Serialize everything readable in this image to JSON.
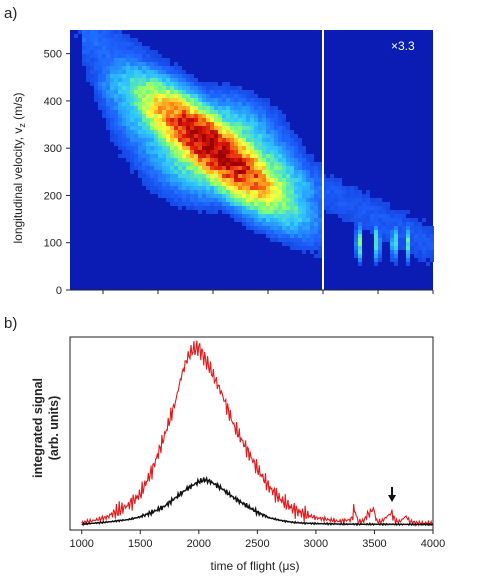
{
  "chart_data": [
    {
      "panel": "a)",
      "type": "heatmap",
      "title": "",
      "xlabel": "",
      "ylabel_main": "longitudinal velocity, v",
      "ylabel_sub": "z",
      "ylabel_unit": " (m/s)",
      "xlim": [
        700,
        4000
      ],
      "ylim": [
        0,
        550
      ],
      "y_ticks": [
        0,
        100,
        200,
        300,
        400,
        500
      ],
      "x_ticks": [
        1000,
        1500,
        2000,
        2500,
        3000,
        3500,
        4000
      ],
      "split_line_x": 3000,
      "scale_annotation": "×3.3",
      "colormap": [
        "#0a1fbf",
        "#1e64ff",
        "#2fc8ff",
        "#7dff7a",
        "#ffff3a",
        "#ff8a1a",
        "#e01a0a",
        "#9a0000"
      ],
      "background_color": "#0a1cb4",
      "blobs": [
        {
          "x": 2000,
          "y": 300,
          "sx": 380,
          "sy": 70,
          "amp": 1.0
        },
        {
          "x": 1350,
          "y": 390,
          "sx": 220,
          "sy": 55,
          "amp": 0.45
        },
        {
          "x": 2550,
          "y": 235,
          "sx": 200,
          "sy": 40,
          "amp": 0.55
        },
        {
          "x": 1100,
          "y": 450,
          "sx": 150,
          "sy": 35,
          "amp": 0.3
        },
        {
          "x": 2850,
          "y": 200,
          "sx": 130,
          "sy": 30,
          "amp": 0.3
        }
      ],
      "late_peaks": [
        {
          "x": 3330,
          "y": 100,
          "amp": 0.75
        },
        {
          "x": 3490,
          "y": 100,
          "amp": 0.75
        },
        {
          "x": 3650,
          "y": 100,
          "amp": 0.7
        },
        {
          "x": 3770,
          "y": 100,
          "amp": 0.65
        }
      ],
      "late_band": {
        "x_start": 3000,
        "x_end": 3950,
        "y_start": 210,
        "y_end": 100
      }
    },
    {
      "panel": "b)",
      "type": "line",
      "title": "",
      "xlabel": "time of flight (μs)",
      "ylabel_line1": "integrated signal",
      "ylabel_line2": "(arb. units)",
      "xlim": [
        900,
        4000
      ],
      "ylim": [
        0,
        1.0
      ],
      "x_ticks": [
        1000,
        1500,
        2000,
        2500,
        3000,
        3500,
        4000
      ],
      "series": [
        {
          "color": "#e31a1c",
          "x": [
            1000,
            1200,
            1400,
            1500,
            1600,
            1700,
            1800,
            1850,
            1900,
            1950,
            2000,
            2050,
            2100,
            2150,
            2200,
            2300,
            2400,
            2500,
            2600,
            2700,
            2800,
            2900,
            3000,
            3100,
            3200,
            3300,
            3330,
            3360,
            3400,
            3490,
            3520,
            3560,
            3650,
            3680,
            3720,
            3770,
            3800,
            3850,
            3900,
            4000
          ],
          "values": [
            0.01,
            0.04,
            0.11,
            0.17,
            0.3,
            0.48,
            0.68,
            0.82,
            0.92,
            0.97,
            0.98,
            0.92,
            0.86,
            0.79,
            0.72,
            0.55,
            0.43,
            0.31,
            0.21,
            0.14,
            0.09,
            0.06,
            0.04,
            0.03,
            0.02,
            0.03,
            0.09,
            0.02,
            0.02,
            0.09,
            0.02,
            0.02,
            0.07,
            0.02,
            0.02,
            0.05,
            0.02,
            0.01,
            0.01,
            0.01
          ]
        },
        {
          "color": "#111111",
          "x": [
            1000,
            1200,
            1400,
            1500,
            1600,
            1700,
            1800,
            1900,
            2000,
            2050,
            2100,
            2200,
            2300,
            2400,
            2500,
            2600,
            2700,
            2800,
            2900,
            3000,
            3200,
            3500,
            4000
          ],
          "values": [
            0.005,
            0.015,
            0.03,
            0.045,
            0.07,
            0.1,
            0.15,
            0.2,
            0.24,
            0.25,
            0.24,
            0.2,
            0.15,
            0.11,
            0.07,
            0.04,
            0.025,
            0.015,
            0.01,
            0.008,
            0.005,
            0.004,
            0.003
          ]
        }
      ],
      "arrow_annotation_x": 3650
    }
  ]
}
